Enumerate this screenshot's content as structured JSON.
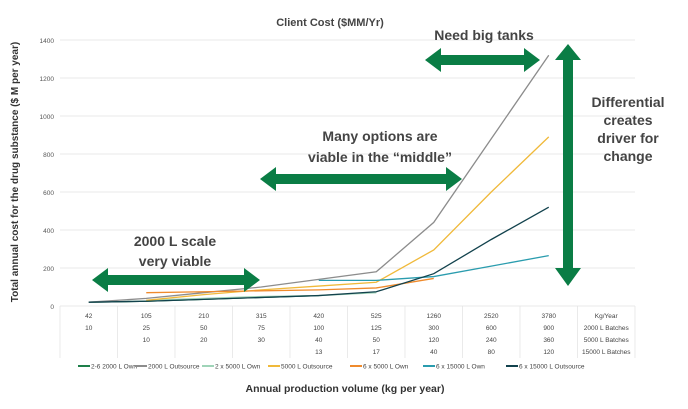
{
  "chart_data": {
    "type": "line",
    "title": "Client Cost ($MM/Yr)",
    "xlabel": "Annual production volume (kg per year)",
    "ylabel": "Total annual cost for the drug substance ($ M per year)",
    "ylim": [
      0,
      1400
    ],
    "yticks": [
      0,
      200,
      400,
      600,
      800,
      1000,
      1200,
      1400
    ],
    "grid": true,
    "legend": "bottom",
    "categories": [
      "42",
      "105",
      "210",
      "315",
      "420",
      "525",
      "1260",
      "2520",
      "3780"
    ],
    "table": [
      {
        "label": "Kg/Year",
        "values": [
          "42",
          "105",
          "210",
          "315",
          "420",
          "525",
          "1260",
          "2520",
          "3780"
        ]
      },
      {
        "label": "2000 L Batches",
        "values": [
          "10",
          "25",
          "50",
          "75",
          "100",
          "125",
          "300",
          "600",
          "900"
        ]
      },
      {
        "label": "5000 L Batches",
        "values": [
          "",
          "10",
          "20",
          "30",
          "40",
          "50",
          "120",
          "240",
          "360"
        ]
      },
      {
        "label": "15000 L Batches",
        "values": [
          "",
          "",
          "",
          "",
          "13",
          "17",
          "40",
          "80",
          "120"
        ]
      }
    ],
    "series": [
      {
        "name": "2-6 2000 L Own",
        "color": "#1e7f4a",
        "values": [
          20,
          25,
          35,
          45,
          55,
          null,
          null,
          null,
          null
        ]
      },
      {
        "name": "2000 L Outsource",
        "color": "#8c8c8c",
        "values": [
          20,
          40,
          70,
          100,
          140,
          180,
          440,
          880,
          1320
        ]
      },
      {
        "name": "2 x 5000 L Own",
        "color": "#9fd4b8",
        "values": [
          null,
          30,
          40,
          50,
          55,
          70,
          null,
          null,
          null
        ]
      },
      {
        "name": "5000 L Outsource",
        "color": "#f0b93a",
        "values": [
          null,
          30,
          60,
          85,
          105,
          125,
          295,
          600,
          890
        ]
      },
      {
        "name": "6 x 5000 L Own",
        "color": "#ef8a2c",
        "values": [
          null,
          70,
          75,
          80,
          85,
          95,
          145,
          null,
          null
        ]
      },
      {
        "name": "6 x 15000 L Own",
        "color": "#2a9cae",
        "values": [
          null,
          null,
          null,
          null,
          135,
          135,
          155,
          210,
          265
        ]
      },
      {
        "name": "6 x 15000 L Outsource",
        "color": "#12424d",
        "values": [
          20,
          25,
          35,
          45,
          55,
          75,
          170,
          350,
          520
        ]
      }
    ],
    "annotations": {
      "big_tanks": "Need big tanks",
      "middle_1": "Many options are",
      "middle_2": "viable in the “middle”",
      "scale_1": "2000 L scale",
      "scale_2": "very viable",
      "diff_1": "Differential",
      "diff_2": "creates",
      "diff_3": "driver for",
      "diff_4": "change"
    },
    "arrow_color": "#0a7d45"
  }
}
